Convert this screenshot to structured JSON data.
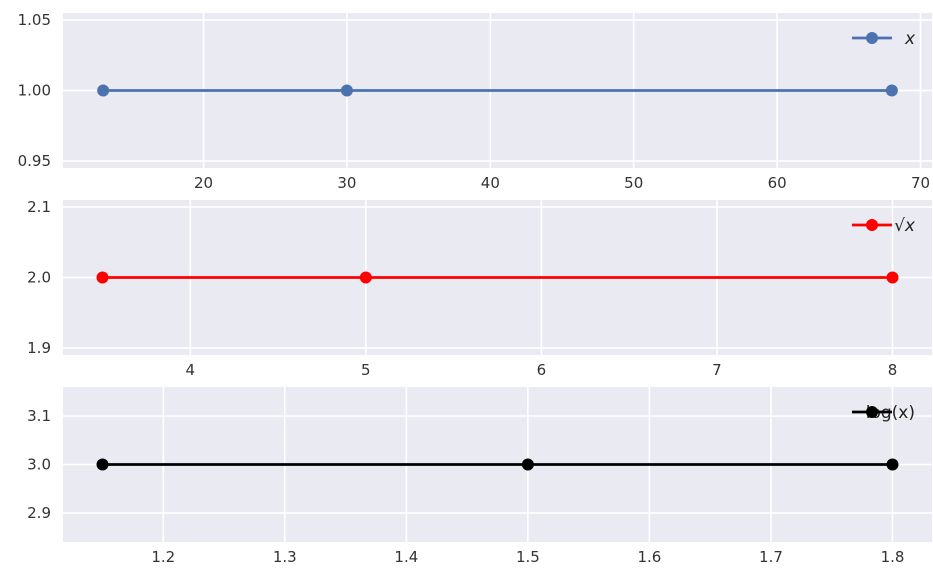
{
  "chart_data": [
    {
      "type": "line",
      "x": [
        13,
        30,
        68
      ],
      "series": [
        {
          "name": "x",
          "values": [
            1,
            1,
            1
          ],
          "color": "#4c72b0"
        }
      ],
      "xticks": [
        "20",
        "30",
        "40",
        "50",
        "60",
        "70"
      ],
      "yticks": [
        "0.95",
        "1.00",
        "1.05"
      ],
      "xlim": [
        10.2,
        70.8
      ],
      "ylim": [
        0.945,
        1.055
      ],
      "grid": true,
      "legend_position": "top-right"
    },
    {
      "type": "line",
      "x": [
        3.5,
        5,
        8
      ],
      "series": [
        {
          "name": "√x",
          "values": [
            2,
            2,
            2
          ],
          "color": "#ff0000"
        }
      ],
      "xticks": [
        "4",
        "5",
        "6",
        "7",
        "8"
      ],
      "yticks": [
        "1.9",
        "2.0",
        "2.1"
      ],
      "xlim": [
        3.275,
        8.225
      ],
      "ylim": [
        1.89,
        2.11
      ],
      "grid": true,
      "legend_position": "top-right"
    },
    {
      "type": "line",
      "x": [
        1.15,
        1.5,
        1.8
      ],
      "series": [
        {
          "name": "log(x)",
          "values": [
            3,
            3,
            3
          ],
          "color": "#000000"
        }
      ],
      "xticks": [
        "1.2",
        "1.3",
        "1.4",
        "1.5",
        "1.6",
        "1.7",
        "1.8"
      ],
      "yticks": [
        "2.9",
        "3.0",
        "3.1"
      ],
      "xlim": [
        1.1175,
        1.8325
      ],
      "ylim": [
        2.84,
        3.16
      ],
      "grid": true,
      "legend_position": "top-right"
    }
  ],
  "colors": {
    "axes_background": "#eaeaf2",
    "grid": "#ffffff",
    "tick_text": "#333333"
  }
}
